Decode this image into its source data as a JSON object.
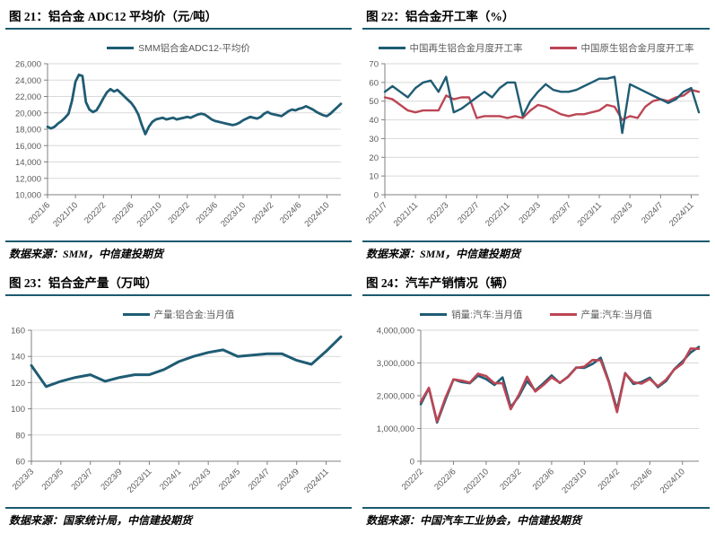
{
  "page": {
    "background": "#ffffff",
    "accent_rule_color": "#1b5a6e",
    "label_color": "#595959",
    "grid_color": "#d9d9d9",
    "axis_color": "#808080"
  },
  "figures": [
    {
      "title": "图 21：铝合金 ADC12 平均价（元/吨）",
      "source": "数据来源：SMM，中信建投期货"
    },
    {
      "title": "图 22：铝合金开工率（%）",
      "source": "数据来源：SMM，中信建投期货"
    },
    {
      "title": "图 23：铝合金产量（万吨）",
      "source": "数据来源：国家统计局，中信建投期货"
    },
    {
      "title": "图 24：汽车产销情况（辆）",
      "source": "数据来源：中国汽车工业协会，中信建投期货"
    }
  ],
  "chart_data": [
    {
      "type": "line",
      "title": "铝合金 ADC12 平均价（元/吨）",
      "ylabel": "",
      "xlabel": "",
      "ylim": [
        10000,
        26000
      ],
      "ytick_step": 2000,
      "y_thousands": true,
      "grid": true,
      "legend_position": "top",
      "stroke_width": 2.8,
      "x_tick_labels": [
        "2021/6",
        "2021/10",
        "2022/2",
        "2022/6",
        "2022/10",
        "2023/2",
        "2023/6",
        "2023/10",
        "2024/2",
        "2024/6",
        "2024/10"
      ],
      "tick_every": 8,
      "series": [
        {
          "name": "SMM铝合金ADC12-平均价",
          "color": "#1f5c73",
          "values": [
            18300,
            18100,
            18300,
            18700,
            19000,
            19400,
            19900,
            21500,
            23800,
            24650,
            24500,
            21300,
            20400,
            20100,
            20300,
            21000,
            21800,
            22500,
            22900,
            22600,
            22800,
            22400,
            22000,
            21600,
            21200,
            20600,
            19800,
            18500,
            17400,
            18300,
            18900,
            19200,
            19300,
            19400,
            19200,
            19300,
            19400,
            19200,
            19300,
            19400,
            19500,
            19400,
            19600,
            19800,
            19900,
            19800,
            19500,
            19200,
            19000,
            18900,
            18800,
            18700,
            18600,
            18500,
            18600,
            18800,
            19100,
            19300,
            19500,
            19400,
            19300,
            19500,
            19900,
            20100,
            19900,
            19800,
            19700,
            19600,
            19900,
            20200,
            20400,
            20300,
            20500,
            20600,
            20800,
            20600,
            20400,
            20100,
            19900,
            19700,
            19600,
            19900,
            20300,
            20700,
            21100
          ]
        }
      ]
    },
    {
      "type": "line",
      "title": "铝合金开工率（%）",
      "ylabel": "",
      "xlabel": "",
      "ylim": [
        0,
        70
      ],
      "ytick_step": 10,
      "y_thousands": false,
      "grid": true,
      "legend_position": "top",
      "stroke_width": 2.4,
      "draw_reverse": true,
      "x_tick_labels": [
        "2021/7",
        "2021/11",
        "2022/3",
        "2022/7",
        "2022/11",
        "2023/3",
        "2023/7",
        "2023/11",
        "2024/3",
        "2024/7",
        "2024/11"
      ],
      "tick_every": 4,
      "series": [
        {
          "name": "中国再生铝合金月度开工率",
          "color": "#1f5c73",
          "values": [
            55,
            58,
            55,
            52,
            57,
            60,
            61,
            55,
            63,
            44,
            46,
            49,
            52,
            55,
            52,
            57,
            60,
            60,
            42,
            50,
            55,
            59,
            56,
            55,
            55,
            56,
            58,
            60,
            62,
            62,
            63,
            33,
            59,
            57,
            55,
            53,
            51,
            49,
            51,
            55,
            57,
            44
          ]
        },
        {
          "name": "中国原生铝合金月度开工率",
          "color": "#bc4655",
          "values": [
            52,
            51,
            48,
            45,
            44,
            45,
            45,
            45,
            53,
            51,
            52,
            52,
            41,
            42,
            42,
            42,
            41,
            42,
            41,
            45,
            48,
            47,
            45,
            43,
            42,
            43,
            43,
            44,
            45,
            48,
            47,
            40,
            42,
            41,
            47,
            50,
            51,
            50,
            52,
            53,
            56,
            55
          ]
        }
      ]
    },
    {
      "type": "line",
      "title": "铝合金产量（万吨）",
      "ylabel": "",
      "xlabel": "",
      "ylim": [
        60,
        160
      ],
      "ytick_step": 20,
      "y_thousands": false,
      "grid": true,
      "legend_position": "top",
      "stroke_width": 3,
      "x_tick_labels": [
        "2023/3",
        "2023/5",
        "2023/7",
        "2023/9",
        "2023/11",
        "2024/1",
        "2024/3",
        "2024/5",
        "2024/7",
        "2024/9",
        "2024/11"
      ],
      "tick_every": 2,
      "series": [
        {
          "name": "产量:铝合金:当月值",
          "color": "#1f5c73",
          "values": [
            133,
            117,
            121,
            124,
            126,
            121,
            124,
            126,
            126,
            130,
            136,
            140,
            143,
            145,
            140,
            141,
            142,
            142,
            137,
            134,
            144,
            155
          ]
        }
      ]
    },
    {
      "type": "line",
      "title": "汽车产销情况（辆）",
      "ylabel": "",
      "xlabel": "",
      "ylim": [
        0,
        4000000
      ],
      "ytick_step": 1000000,
      "y_thousands": true,
      "grid": true,
      "legend_position": "top",
      "stroke_width": 2.6,
      "x_tick_labels": [
        "2022/2",
        "2022/6",
        "2022/10",
        "2023/2",
        "2023/6",
        "2023/10",
        "2024/2",
        "2024/6",
        "2024/10"
      ],
      "tick_every": 4,
      "series": [
        {
          "name": "销量:汽车:当月值",
          "color": "#1f5c73",
          "values": [
            1740000,
            2230000,
            1180000,
            1860000,
            2500000,
            2420000,
            2380000,
            2610000,
            2510000,
            2330000,
            2560000,
            1650000,
            1980000,
            2450000,
            2160000,
            2380000,
            2620000,
            2390000,
            2580000,
            2860000,
            2850000,
            2970000,
            3160000,
            2440000,
            1580000,
            2690000,
            2360000,
            2420000,
            2550000,
            2260000,
            2450000,
            2810000,
            3050000,
            3320000,
            3490000
          ]
        },
        {
          "name": "产量:汽车:当月值",
          "color": "#bc4655",
          "values": [
            1810000,
            2240000,
            1210000,
            1930000,
            2500000,
            2460000,
            2400000,
            2670000,
            2600000,
            2380000,
            2380000,
            1590000,
            2030000,
            2580000,
            2130000,
            2330000,
            2560000,
            2400000,
            2570000,
            2850000,
            2890000,
            3090000,
            3080000,
            2410000,
            1500000,
            2680000,
            2410000,
            2370000,
            2510000,
            2290000,
            2490000,
            2800000,
            2990000,
            3440000,
            3430000
          ]
        }
      ]
    }
  ]
}
